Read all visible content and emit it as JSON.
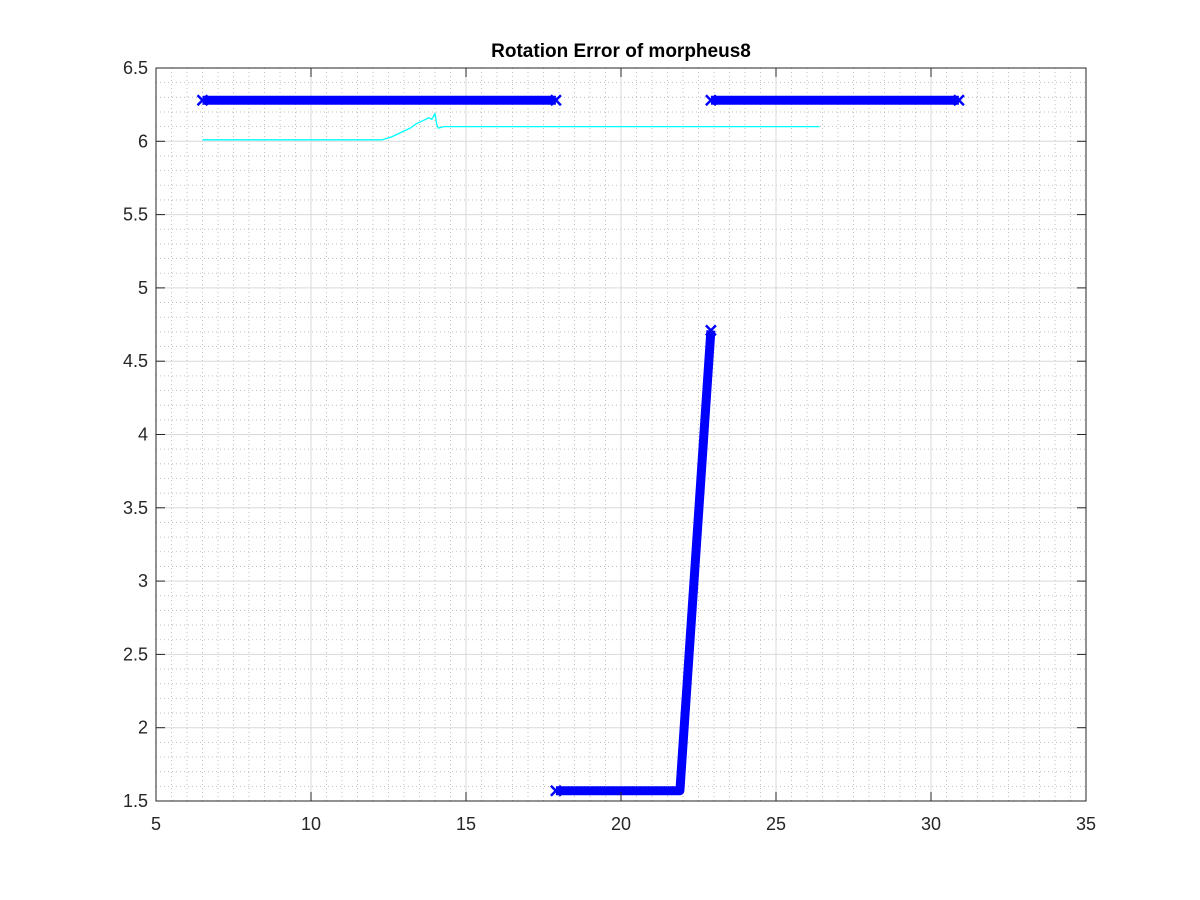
{
  "chart_data": {
    "type": "line",
    "title": "Rotation Error of morpheus8",
    "xlabel": "",
    "ylabel": "",
    "xlim": [
      5,
      35
    ],
    "ylim": [
      1.5,
      6.5
    ],
    "xticks": [
      "5",
      "10",
      "15",
      "20",
      "25",
      "30",
      "35"
    ],
    "yticks": [
      "1.5",
      "2",
      "2.5",
      "3",
      "3.5",
      "4",
      "4.5",
      "5",
      "5.5",
      "6",
      "6.5"
    ],
    "grid": "on",
    "minor_grid": "on",
    "legend": "none",
    "series": [
      {
        "color": "#0000ff",
        "style": "thick-marker-line",
        "segments": [
          [
            [
              6.5,
              6.28
            ],
            [
              17.9,
              6.28
            ]
          ],
          [
            [
              17.9,
              1.57
            ],
            [
              21.9,
              1.57
            ],
            [
              22.9,
              4.71
            ]
          ],
          [
            [
              22.9,
              6.28
            ],
            [
              30.9,
              6.28
            ]
          ]
        ]
      },
      {
        "color": "#00ffff",
        "style": "thin-line",
        "segments": [
          [
            [
              6.5,
              6.01
            ],
            [
              12.3,
              6.01
            ],
            [
              12.6,
              6.03
            ],
            [
              12.9,
              6.06
            ],
            [
              13.2,
              6.09
            ],
            [
              13.4,
              6.12
            ],
            [
              13.6,
              6.14
            ],
            [
              13.8,
              6.16
            ],
            [
              13.9,
              6.15
            ],
            [
              14.0,
              6.19
            ],
            [
              14.05,
              6.12
            ],
            [
              14.1,
              6.09
            ],
            [
              14.3,
              6.1
            ],
            [
              20.0,
              6.1
            ],
            [
              26.4,
              6.1
            ]
          ]
        ]
      }
    ]
  }
}
